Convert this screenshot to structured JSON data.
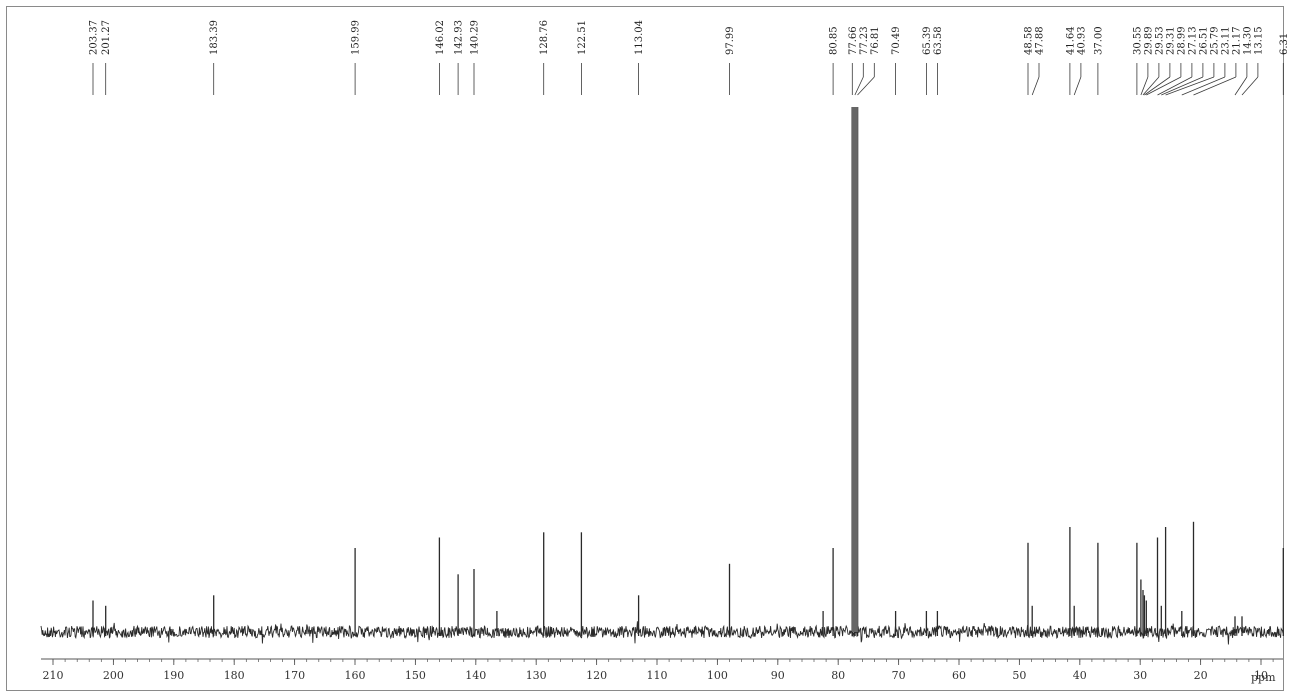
{
  "chart_data": {
    "type": "line",
    "title": "",
    "xlabel": "ppm",
    "ylabel": "",
    "xlim": [
      212,
      0
    ],
    "x_axis_reversed": true,
    "grid": false,
    "x_ticks": [
      210,
      200,
      190,
      180,
      170,
      160,
      150,
      140,
      130,
      120,
      110,
      100,
      90,
      80,
      70,
      60,
      50,
      40,
      30,
      20,
      10
    ],
    "x_tick_labels": [
      "210",
      "200",
      "190",
      "180",
      "170",
      "160",
      "150",
      "140",
      "130",
      "120",
      "110",
      "100",
      "90",
      "80",
      "70",
      "60",
      "50",
      "40",
      "30",
      "20",
      "10"
    ],
    "peak_labels": [
      "203.37",
      "201.27",
      "183.39",
      "159.99",
      "146.02",
      "142.93",
      "140.29",
      "128.76",
      "122.51",
      "113.04",
      "97.99",
      "80.85",
      "77.66",
      "77.23",
      "76.81",
      "70.49",
      "65.39",
      "63.58",
      "48.58",
      "47.88",
      "41.64",
      "40.93",
      "37.00",
      "30.55",
      "29.89",
      "29.53",
      "29.31",
      "28.99",
      "27.13",
      "26.51",
      "25.79",
      "23.11",
      "21.17",
      "14.30",
      "13.15",
      "6.31"
    ],
    "peaks": [
      {
        "ppm": 203.37,
        "intensity": 0.06
      },
      {
        "ppm": 201.27,
        "intensity": 0.05
      },
      {
        "ppm": 183.39,
        "intensity": 0.07
      },
      {
        "ppm": 159.99,
        "intensity": 0.16
      },
      {
        "ppm": 146.02,
        "intensity": 0.18
      },
      {
        "ppm": 142.93,
        "intensity": 0.11
      },
      {
        "ppm": 140.29,
        "intensity": 0.12
      },
      {
        "ppm": 136.5,
        "intensity": 0.04
      },
      {
        "ppm": 128.76,
        "intensity": 0.19
      },
      {
        "ppm": 122.51,
        "intensity": 0.19
      },
      {
        "ppm": 113.04,
        "intensity": 0.07
      },
      {
        "ppm": 97.99,
        "intensity": 0.13
      },
      {
        "ppm": 82.5,
        "intensity": 0.04
      },
      {
        "ppm": 80.85,
        "intensity": 0.16
      },
      {
        "ppm": 77.66,
        "intensity": 1.0
      },
      {
        "ppm": 77.23,
        "intensity": 1.0
      },
      {
        "ppm": 76.81,
        "intensity": 1.0
      },
      {
        "ppm": 70.49,
        "intensity": 0.04
      },
      {
        "ppm": 65.39,
        "intensity": 0.04
      },
      {
        "ppm": 63.58,
        "intensity": 0.04
      },
      {
        "ppm": 48.58,
        "intensity": 0.17
      },
      {
        "ppm": 47.88,
        "intensity": 0.05
      },
      {
        "ppm": 41.64,
        "intensity": 0.2
      },
      {
        "ppm": 40.93,
        "intensity": 0.05
      },
      {
        "ppm": 37.0,
        "intensity": 0.17
      },
      {
        "ppm": 30.55,
        "intensity": 0.17
      },
      {
        "ppm": 29.89,
        "intensity": 0.1
      },
      {
        "ppm": 29.53,
        "intensity": 0.08
      },
      {
        "ppm": 29.31,
        "intensity": 0.07
      },
      {
        "ppm": 28.99,
        "intensity": 0.06
      },
      {
        "ppm": 27.13,
        "intensity": 0.18
      },
      {
        "ppm": 26.51,
        "intensity": 0.05
      },
      {
        "ppm": 25.79,
        "intensity": 0.2
      },
      {
        "ppm": 23.11,
        "intensity": 0.04
      },
      {
        "ppm": 21.17,
        "intensity": 0.21
      },
      {
        "ppm": 14.3,
        "intensity": 0.03
      },
      {
        "ppm": 13.15,
        "intensity": 0.03
      },
      {
        "ppm": 6.31,
        "intensity": 0.16
      }
    ]
  },
  "colors": {
    "trace": "#2a2a2a",
    "label_lines": "#3a3a3a",
    "axis": "#555555",
    "frame": "#8a8a8a"
  }
}
